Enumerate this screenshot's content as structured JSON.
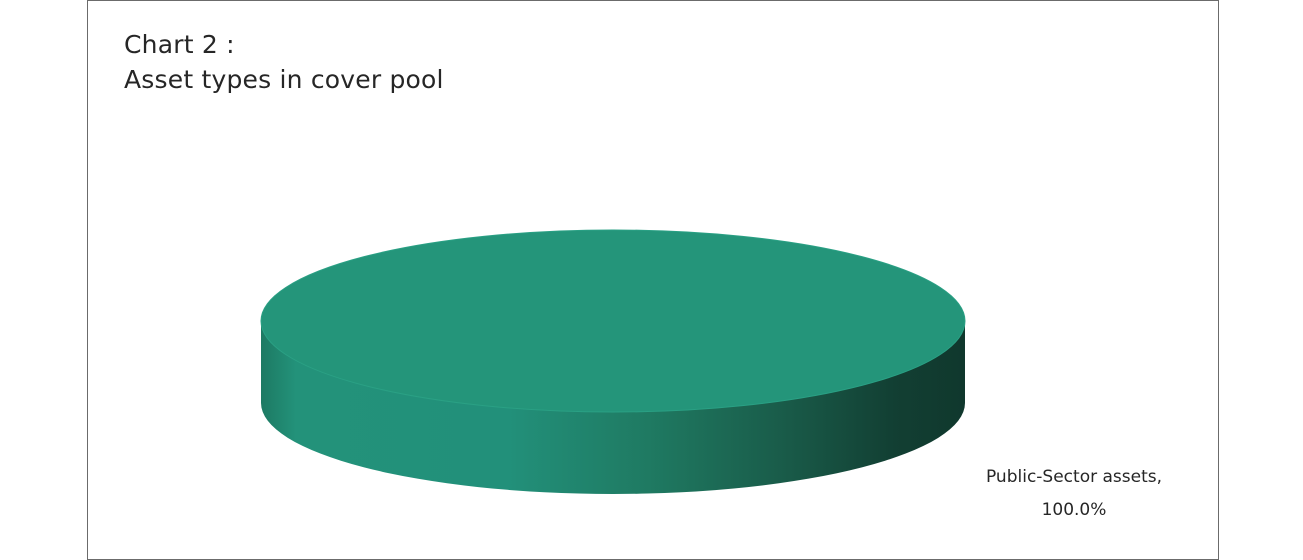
{
  "chart_data": {
    "type": "pie",
    "title_line1": "Chart 2 :",
    "title_line2": "Asset types in cover pool",
    "slices": [
      {
        "label": "Public-Sector assets,",
        "percent_label": "100.0%",
        "value": 100.0,
        "color": "#24957a"
      }
    ],
    "style": "3d",
    "legend": "none",
    "data_labels": "outside-bottom-right"
  }
}
